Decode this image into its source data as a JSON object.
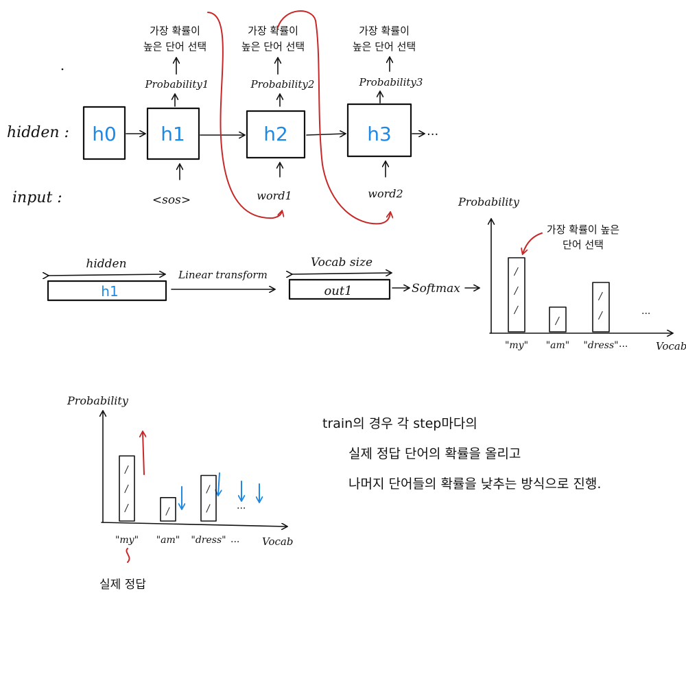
{
  "colors": {
    "ink": "#111111",
    "accent_blue": "#1e88e5",
    "accent_red": "#c62828"
  },
  "row_labels": {
    "hidden": "hidden :",
    "input": "input :"
  },
  "steps": [
    {
      "hidden": "h0",
      "input": "",
      "prob": "",
      "choose": []
    },
    {
      "hidden": "h1",
      "input": "<sos>",
      "prob": "Probability1",
      "choose": [
        "가장 확률이",
        "높은 단어 선택"
      ]
    },
    {
      "hidden": "h2",
      "input": "word1",
      "prob": "Probability2",
      "choose": [
        "가장 확률이",
        "높은 단어 선택"
      ]
    },
    {
      "hidden": "h3",
      "input": "word2",
      "prob": "Probability3",
      "choose": [
        "가장 확률이",
        "높은 단어 선택"
      ]
    }
  ],
  "ellipsis": "···",
  "pipeline": {
    "hidden_label": "hidden",
    "hidden_cell": "h1",
    "linear": "Linear transform",
    "vocab_label": "Vocab size",
    "out_cell": "out1",
    "softmax": "Softmax"
  },
  "chart_top": {
    "ylabel": "Probability",
    "xlabel": "Vocab",
    "annotation": [
      "가장 확률이 높은",
      "단어 선택"
    ]
  },
  "chart_bottom": {
    "ylabel": "Probability",
    "xlabel": "Vocab",
    "annotation": "실제 정답"
  },
  "chart_data": [
    {
      "type": "bar",
      "categories": [
        "\"my\"",
        "\"am\"",
        "\"dress\""
      ],
      "values": [
        0.6,
        0.2,
        0.4
      ],
      "xlabel": "Vocab",
      "ylabel": "Probability",
      "ylim": [
        0,
        1
      ],
      "annotations": [
        "가장 확률이 높은 단어 선택"
      ]
    },
    {
      "type": "bar",
      "categories": [
        "\"my\"",
        "\"am\"",
        "\"dress\""
      ],
      "values": [
        0.5,
        0.18,
        0.35
      ],
      "xlabel": "Vocab",
      "ylabel": "Probability",
      "ylim": [
        0,
        1
      ],
      "annotations": [
        "실제 정답"
      ]
    }
  ],
  "train_note": [
    "train의 경우 각 step마다의",
    "실제 정답 단어의 확률을 올리고",
    "나머지 단어들의 확률을 낮추는 방식으로 진행."
  ]
}
